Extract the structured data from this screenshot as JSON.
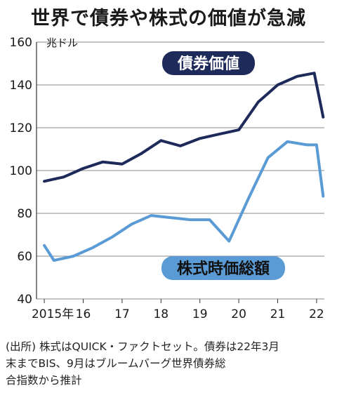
{
  "title": "世界で債券や株式の価値が急減",
  "chart_data": {
    "type": "line",
    "unit_label": "兆ドル",
    "ylim": [
      40,
      160
    ],
    "yticks": [
      40,
      60,
      80,
      100,
      120,
      140,
      160
    ],
    "xlim": [
      2014.8,
      2022.2
    ],
    "xticks": [
      {
        "x": 2015,
        "label": "2015年"
      },
      {
        "x": 2016,
        "label": "16"
      },
      {
        "x": 2017,
        "label": "17"
      },
      {
        "x": 2018,
        "label": "18"
      },
      {
        "x": 2019,
        "label": "19"
      },
      {
        "x": 2020,
        "label": "20"
      },
      {
        "x": 2021,
        "label": "21"
      },
      {
        "x": 2022,
        "label": "22"
      }
    ],
    "grid": true,
    "series": [
      {
        "name": "債券価値",
        "color": "#1e2a5a",
        "x": [
          2015,
          2015.5,
          2016,
          2016.5,
          2017,
          2017.5,
          2018,
          2018.5,
          2019,
          2019.5,
          2020,
          2020.5,
          2021,
          2021.5,
          2021.94,
          2022.17
        ],
        "values": [
          95,
          97,
          101,
          104,
          103,
          108,
          114,
          111.5,
          115,
          117,
          119,
          132,
          140,
          144,
          145.5,
          125
        ]
      },
      {
        "name": "株式時価総額",
        "color": "#5b9bd5",
        "x": [
          2015,
          2015.25,
          2015.75,
          2016.25,
          2016.75,
          2017.25,
          2017.75,
          2018.25,
          2018.75,
          2019.25,
          2019.75,
          2020.25,
          2020.75,
          2021.25,
          2021.75,
          2022.0,
          2022.17
        ],
        "values": [
          65,
          58,
          60,
          64,
          69,
          75,
          79,
          78,
          77,
          77,
          67,
          87,
          106,
          113.5,
          112,
          112,
          88
        ]
      }
    ]
  },
  "source_lines": [
    "(出所) 株式はQUICK・ファクトセット。債券は22年3月",
    "末までBIS、9月はブルームバーグ世界債券総",
    "合指数から推計"
  ]
}
